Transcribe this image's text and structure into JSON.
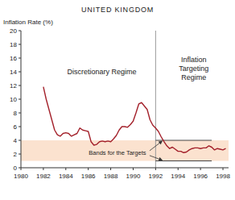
{
  "chart_data": {
    "type": "line",
    "title": "UNITED KINGDOM",
    "y_label": "Inflation Rate (%)",
    "annotations": {
      "left_regime": "Discretionary Regime",
      "right_regime": [
        "Inflation",
        "Targeting",
        "Regime"
      ],
      "bands": "Bands for the Targets"
    },
    "x": [
      1982,
      1982.25,
      1982.5,
      1982.75,
      1983,
      1983.25,
      1983.5,
      1983.75,
      1984,
      1984.25,
      1984.5,
      1984.75,
      1985,
      1985.25,
      1985.5,
      1985.75,
      1986,
      1986.25,
      1986.5,
      1986.75,
      1987,
      1987.25,
      1987.5,
      1987.75,
      1988,
      1988.25,
      1988.5,
      1988.75,
      1989,
      1989.25,
      1989.5,
      1989.75,
      1990,
      1990.25,
      1990.5,
      1990.75,
      1991,
      1991.25,
      1991.5,
      1991.75,
      1992,
      1992.25,
      1992.5,
      1992.75,
      1993,
      1993.25,
      1993.5,
      1993.75,
      1994,
      1994.25,
      1994.5,
      1994.75,
      1995,
      1995.25,
      1995.5,
      1995.75,
      1996,
      1996.25,
      1996.5,
      1996.75,
      1997,
      1997.25,
      1997.5,
      1997.75,
      1998,
      1998.25
    ],
    "values": [
      11.8,
      10.0,
      8.5,
      7.0,
      5.5,
      4.8,
      4.6,
      5.0,
      5.1,
      5.0,
      4.6,
      4.8,
      5.0,
      5.8,
      5.5,
      5.4,
      5.3,
      3.8,
      3.3,
      3.4,
      3.8,
      3.9,
      3.8,
      3.9,
      3.8,
      4.2,
      4.7,
      5.5,
      6.0,
      6.0,
      5.9,
      6.3,
      6.8,
      8.0,
      9.3,
      9.5,
      9.0,
      8.5,
      7.0,
      6.2,
      5.8,
      5.3,
      4.5,
      3.8,
      3.2,
      2.8,
      3.0,
      2.7,
      2.4,
      2.4,
      2.2,
      2.3,
      2.6,
      2.8,
      2.9,
      2.9,
      2.8,
      2.9,
      2.9,
      3.2,
      3.0,
      2.6,
      2.8,
      2.7,
      2.6,
      2.8
    ],
    "color": "#a3202a",
    "xlim": [
      1980,
      1998.5
    ],
    "xticks": [
      1980,
      1982,
      1984,
      1986,
      1988,
      1990,
      1992,
      1994,
      1996,
      1998
    ],
    "ylim": [
      0,
      20
    ],
    "yticks": [
      0,
      2,
      4,
      6,
      8,
      10,
      12,
      14,
      16,
      18,
      20
    ],
    "grid": false,
    "shaded_band": [
      1,
      4
    ],
    "target_band": {
      "x": [
        1992,
        1997
      ],
      "lower": 1,
      "upper": 4
    },
    "regime_change": 1992
  }
}
